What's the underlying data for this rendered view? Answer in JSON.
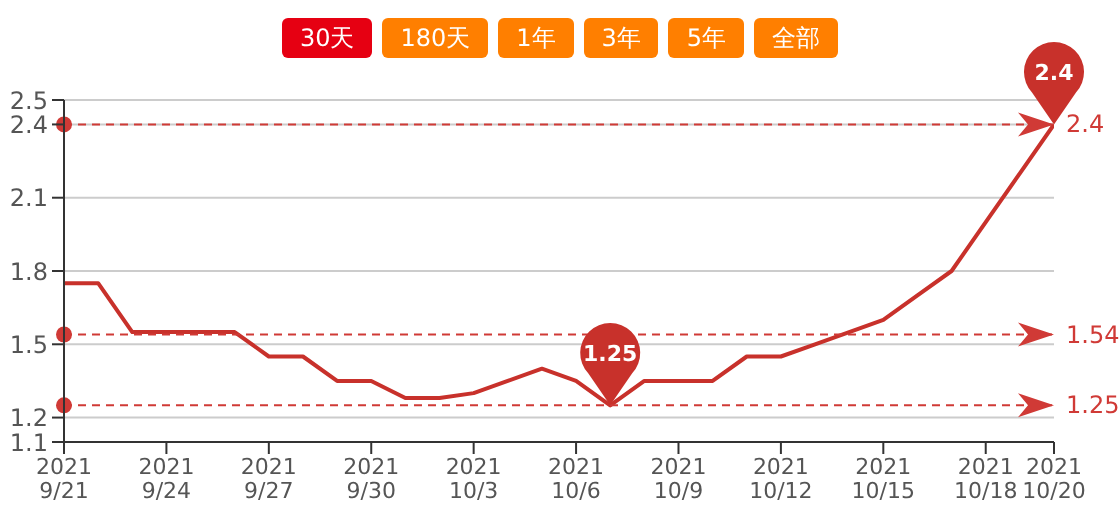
{
  "chart_data": {
    "type": "line",
    "x": [
      "2021-09-21",
      "2021-09-22",
      "2021-09-23",
      "2021-09-24",
      "2021-09-25",
      "2021-09-26",
      "2021-09-27",
      "2021-09-28",
      "2021-09-29",
      "2021-09-30",
      "2021-10-01",
      "2021-10-02",
      "2021-10-03",
      "2021-10-04",
      "2021-10-05",
      "2021-10-06",
      "2021-10-07",
      "2021-10-08",
      "2021-10-09",
      "2021-10-10",
      "2021-10-11",
      "2021-10-12",
      "2021-10-13",
      "2021-10-14",
      "2021-10-15",
      "2021-10-16",
      "2021-10-17",
      "2021-10-18",
      "2021-10-19",
      "2021-10-20"
    ],
    "series": [
      {
        "color": "#c8312b",
        "values": [
          1.75,
          1.75,
          1.55,
          1.55,
          1.55,
          1.55,
          1.45,
          1.45,
          1.35,
          1.35,
          1.28,
          1.28,
          1.3,
          1.35,
          1.4,
          1.35,
          1.25,
          1.35,
          1.35,
          1.35,
          1.45,
          1.45,
          1.5,
          1.55,
          1.6,
          1.7,
          1.8,
          2.0,
          2.2,
          2.4
        ]
      }
    ],
    "xlim": [
      "2021-09-21",
      "2021-10-20"
    ],
    "xticks": [
      {
        "value": "2021-09-21",
        "label": "2021\n9/21"
      },
      {
        "value": "2021-09-24",
        "label": "2021\n9/24"
      },
      {
        "value": "2021-09-27",
        "label": "2021\n9/27"
      },
      {
        "value": "2021-09-30",
        "label": "2021\n9/30"
      },
      {
        "value": "2021-10-03",
        "label": "2021\n10/3"
      },
      {
        "value": "2021-10-06",
        "label": "2021\n10/6"
      },
      {
        "value": "2021-10-09",
        "label": "2021\n10/9"
      },
      {
        "value": "2021-10-12",
        "label": "2021\n10/12"
      },
      {
        "value": "2021-10-15",
        "label": "2021\n10/15"
      },
      {
        "value": "2021-10-18",
        "label": "2021\n10/18"
      },
      {
        "value": "2021-10-20",
        "label": "2021\n10/20"
      }
    ],
    "ylim": [
      1.1,
      2.5
    ],
    "yticks": [
      1.1,
      1.2,
      1.5,
      1.8,
      2.1,
      2.4,
      2.5
    ],
    "grid": "y",
    "marker": "none",
    "ref_lines": [
      {
        "axis": "y",
        "value": 2.4,
        "label": "2.4",
        "color": "#d03a36",
        "line_style": "dashed"
      },
      {
        "axis": "y",
        "value": 1.54,
        "label": "1.54",
        "color": "#d03a36",
        "line_style": "dashed"
      },
      {
        "axis": "y",
        "value": 1.25,
        "label": "1.25",
        "color": "#d03a36",
        "line_style": "dashed"
      }
    ],
    "annotations": [
      "30天",
      "180天",
      "1年",
      "3年",
      "5年",
      "全部",
      {
        "text": "1.25",
        "x": "2021-10-07",
        "y": 1.25
      },
      {
        "text": "2.4",
        "x": "2021-10-20",
        "y": 2.4
      }
    ]
  }
}
